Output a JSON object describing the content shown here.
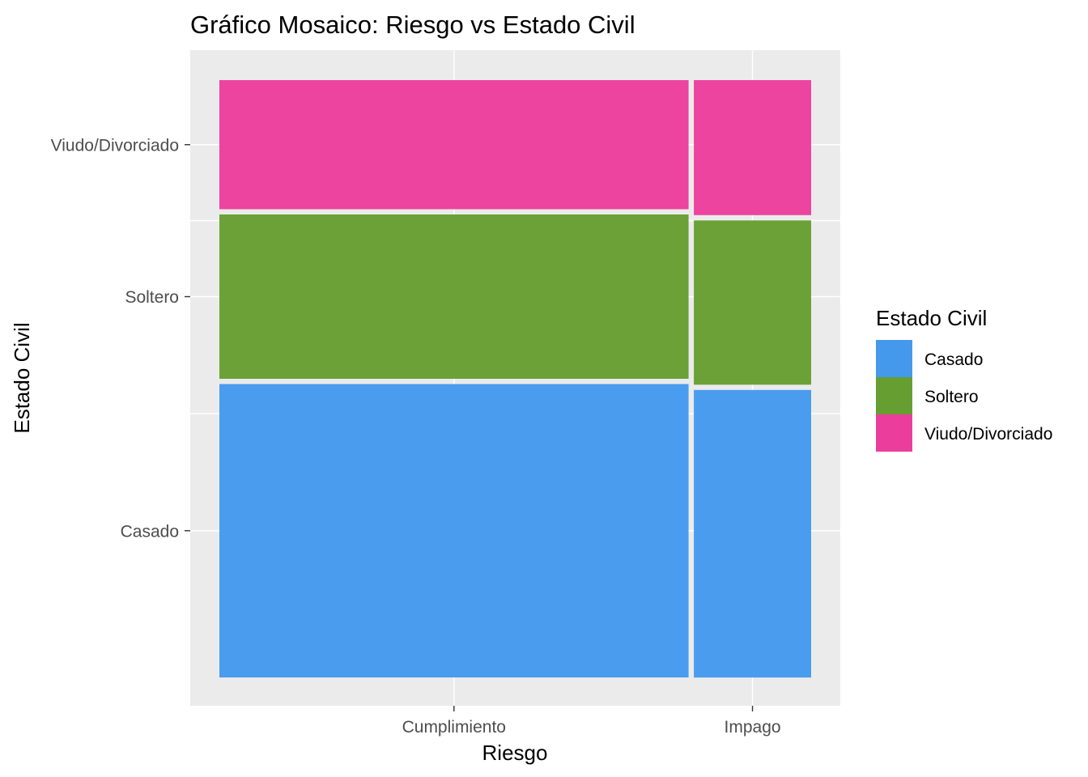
{
  "chart_data": {
    "type": "mosaic",
    "title": "Gráfico Mosaico: Riesgo vs Estado Civil",
    "xlabel": "Riesgo",
    "ylabel": "Estado Civil",
    "categories": [
      "Cumplimiento",
      "Impago"
    ],
    "column_widths": [
      0.8,
      0.2
    ],
    "series": [
      {
        "name": "Casado",
        "color": "#4499ED",
        "values": [
          0.5,
          0.49
        ]
      },
      {
        "name": "Soltero",
        "color": "#669E31",
        "values": [
          0.28,
          0.28
        ]
      },
      {
        "name": "Viudo/Divorciado",
        "color": "#EB3E9C",
        "values": [
          0.22,
          0.23
        ]
      }
    ],
    "y_tick_labels": [
      "Casado",
      "Soltero",
      "Viudo/Divorciado"
    ],
    "legend": {
      "title": "Estado Civil",
      "position": "right"
    },
    "grid": true,
    "background": "#EBEBEB"
  }
}
